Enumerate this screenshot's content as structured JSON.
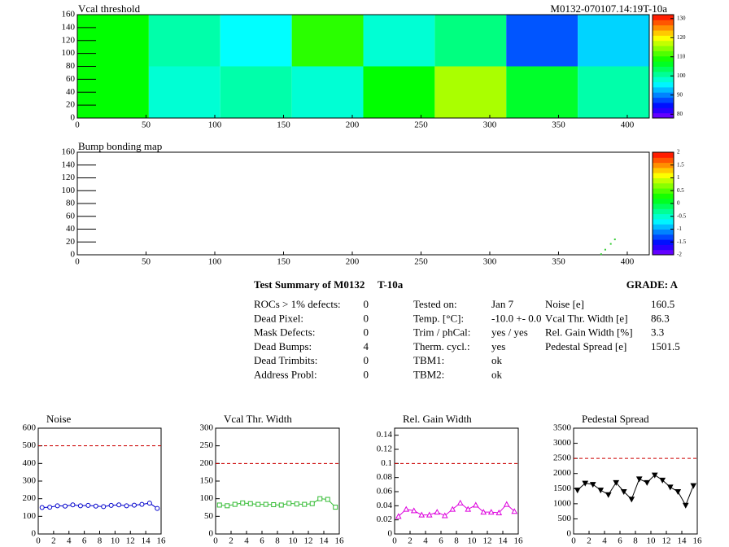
{
  "chart_data": [
    {
      "type": "heatmap",
      "title": "Vcal threshold",
      "subtitle": "M0132-070107.14:19T-10a",
      "xlim": [
        0,
        416
      ],
      "ylim": [
        0,
        160
      ],
      "xticks": [
        0,
        50,
        100,
        150,
        200,
        250,
        300,
        350,
        400
      ],
      "yticks": [
        0,
        20,
        40,
        60,
        80,
        100,
        120,
        140,
        160
      ],
      "zlim": [
        78,
        132
      ],
      "zticks": [
        80,
        90,
        100,
        110,
        120,
        130
      ],
      "cells": [
        [
          108,
          98,
          100,
          98,
          108,
          116,
          106,
          100
        ],
        [
          108,
          100,
          96,
          110,
          98,
          102,
          88,
          94
        ]
      ]
    },
    {
      "type": "scatter",
      "title": "Bump bonding map",
      "xlim": [
        0,
        416
      ],
      "ylim": [
        0,
        160
      ],
      "xticks": [
        0,
        50,
        100,
        150,
        200,
        250,
        300,
        350,
        400
      ],
      "yticks": [
        0,
        20,
        40,
        60,
        80,
        100,
        120,
        140,
        160
      ],
      "zlim": [
        -2,
        2
      ],
      "zticks": [
        -2,
        -1.5,
        -1,
        -0.5,
        0,
        0.5,
        1,
        1.5,
        2
      ],
      "x": [
        381,
        384,
        388,
        391
      ],
      "y": [
        1,
        8,
        17,
        24
      ],
      "color": "#33cc33"
    },
    {
      "type": "line",
      "title": "Noise",
      "color": "#0000cc",
      "marker": "circle",
      "x": [
        0.5,
        1.5,
        2.5,
        3.5,
        4.5,
        5.5,
        6.5,
        7.5,
        8.5,
        9.5,
        10.5,
        11.5,
        12.5,
        13.5,
        14.5,
        15.5
      ],
      "values": [
        150,
        152,
        160,
        158,
        165,
        160,
        162,
        158,
        155,
        162,
        165,
        160,
        163,
        168,
        175,
        145
      ],
      "xlim": [
        0,
        16
      ],
      "xticks": [
        0,
        2,
        4,
        6,
        8,
        10,
        12,
        14,
        16
      ],
      "ylim": [
        0,
        600
      ],
      "yticks": [
        0,
        100,
        200,
        300,
        400,
        500,
        600
      ],
      "limit": 500,
      "limit_color": "#cc0000"
    },
    {
      "type": "line",
      "title": "Vcal Thr. Width",
      "color": "#33bb33",
      "marker": "square",
      "x": [
        0.5,
        1.5,
        2.5,
        3.5,
        4.5,
        5.5,
        6.5,
        7.5,
        8.5,
        9.5,
        10.5,
        11.5,
        12.5,
        13.5,
        14.5,
        15.5
      ],
      "values": [
        82,
        80,
        84,
        88,
        86,
        84,
        84,
        83,
        82,
        87,
        85,
        84,
        86,
        100,
        98,
        76
      ],
      "xlim": [
        0,
        16
      ],
      "xticks": [
        0,
        2,
        4,
        6,
        8,
        10,
        12,
        14,
        16
      ],
      "ylim": [
        0,
        300
      ],
      "yticks": [
        0,
        50,
        100,
        150,
        200,
        250,
        300
      ],
      "limit": 200,
      "limit_color": "#cc0000"
    },
    {
      "type": "line",
      "title": "Rel. Gain Width",
      "color": "#dd00dd",
      "marker": "triangle",
      "x": [
        0.5,
        1.5,
        2.5,
        3.5,
        4.5,
        5.5,
        6.5,
        7.5,
        8.5,
        9.5,
        10.5,
        11.5,
        12.5,
        13.5,
        14.5,
        15.5
      ],
      "values": [
        0.025,
        0.035,
        0.033,
        0.027,
        0.027,
        0.031,
        0.026,
        0.035,
        0.044,
        0.035,
        0.041,
        0.031,
        0.031,
        0.03,
        0.042,
        0.032
      ],
      "xlim": [
        0,
        16
      ],
      "xticks": [
        0,
        2,
        4,
        6,
        8,
        10,
        12,
        14,
        16
      ],
      "ylim": [
        0,
        0.15
      ],
      "yticks": [
        0,
        0.02,
        0.04,
        0.06,
        0.08,
        0.1,
        0.12,
        0.14
      ],
      "limit": 0.1,
      "limit_color": "#cc0000"
    },
    {
      "type": "line",
      "title": "Pedestal Spread",
      "color": "#000000",
      "marker": "triangle-down",
      "x": [
        0.5,
        1.5,
        2.5,
        3.5,
        4.5,
        5.5,
        6.5,
        7.5,
        8.5,
        9.5,
        10.5,
        11.5,
        12.5,
        13.5,
        14.5,
        15.5
      ],
      "values": [
        1450,
        1680,
        1640,
        1450,
        1300,
        1700,
        1400,
        1150,
        1820,
        1700,
        1950,
        1780,
        1550,
        1400,
        950,
        1600
      ],
      "xlim": [
        0,
        16
      ],
      "xticks": [
        0,
        2,
        4,
        6,
        8,
        10,
        12,
        14,
        16
      ],
      "ylim": [
        0,
        3500
      ],
      "yticks": [
        0,
        500,
        1000,
        1500,
        2000,
        2500,
        3000,
        3500
      ],
      "limit": 2500,
      "limit_color": "#cc0000"
    }
  ],
  "summary": {
    "title": "Test Summary of M0132",
    "tag": "T-10a",
    "grade": "GRADE:  A",
    "col1": [
      [
        "ROCs > 1% defects:",
        0
      ],
      [
        "Dead Pixel:",
        0
      ],
      [
        "Mask Defects:",
        0
      ],
      [
        "Dead Bumps:",
        4
      ],
      [
        "Dead Trimbits:",
        0
      ],
      [
        "Address Probl:",
        0
      ]
    ],
    "col2": [
      [
        "Tested on:",
        "Jan 7"
      ],
      [
        "Temp. [°C]:",
        "-10.0 +- 0.0"
      ],
      [
        "Trim / phCal:",
        "yes / yes"
      ],
      [
        "Therm. cycl.:",
        "yes"
      ],
      [
        "TBM1:",
        "ok"
      ],
      [
        "TBM2:",
        "ok"
      ]
    ],
    "col3": [
      [
        "Noise [e]",
        160.5
      ],
      [
        "Vcal Thr. Width [e]",
        86.3
      ],
      [
        "Rel. Gain Width [%]",
        3.3
      ],
      [
        "Pedestal Spread [e]",
        1501.5
      ]
    ]
  }
}
